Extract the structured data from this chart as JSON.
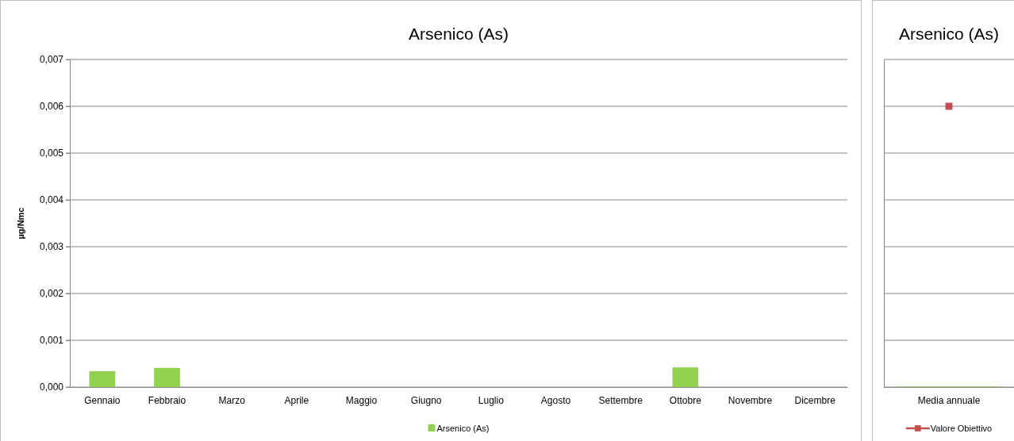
{
  "chart_data": [
    {
      "type": "bar",
      "title": "Arsenico (As)",
      "ylabel": "µg/Nmc",
      "categories": [
        "Gennaio",
        "Febbraio",
        "Marzo",
        "Aprile",
        "Maggio",
        "Giugno",
        "Luglio",
        "Agosto",
        "Settembre",
        "Ottobre",
        "Novembre",
        "Dicembre"
      ],
      "series": [
        {
          "name": "Arsenico (As)",
          "color": "#92d050",
          "values": [
            0.00034,
            0.00041,
            null,
            null,
            null,
            null,
            null,
            null,
            null,
            0.00042,
            null,
            null
          ]
        }
      ],
      "ylim": [
        0,
        0.007
      ],
      "yticks": [
        {
          "value": 0,
          "label": "0,000"
        },
        {
          "value": 0.001,
          "label": "0,001"
        },
        {
          "value": 0.002,
          "label": "0,002"
        },
        {
          "value": 0.003,
          "label": "0,003"
        },
        {
          "value": 0.004,
          "label": "0,004"
        },
        {
          "value": 0.005,
          "label": "0,005"
        },
        {
          "value": 0.006,
          "label": "0,006"
        },
        {
          "value": 0.007,
          "label": "0,007"
        }
      ],
      "grid": "y",
      "legend": "bottom"
    },
    {
      "type": "bar",
      "title": "Arsenico (As)",
      "categories": [
        "Media annuale"
      ],
      "series": [
        {
          "color": "#92d050",
          "values": [
            1e-05
          ]
        },
        {
          "name": "Valore Obiettivo",
          "type": "line",
          "color": "#c0504d",
          "values": [
            0.006
          ]
        }
      ],
      "ylim": [
        0,
        0.007
      ],
      "yticks": [
        0,
        0.001,
        0.002,
        0.003,
        0.004,
        0.005,
        0.006,
        0.007
      ],
      "grid": "y",
      "legend": "bottom",
      "tick_labels": "x",
      "marker": "square"
    }
  ]
}
